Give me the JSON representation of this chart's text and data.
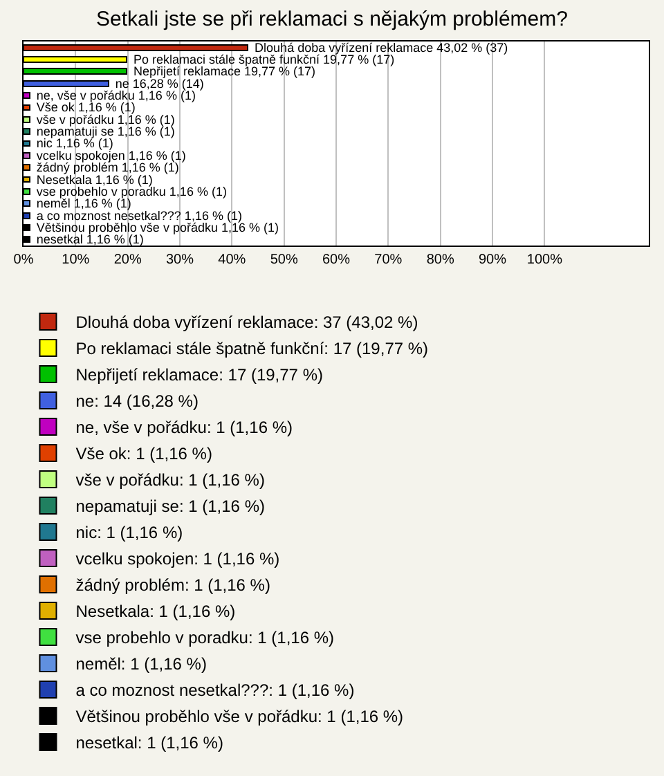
{
  "chart_data": {
    "type": "bar",
    "orientation": "horizontal",
    "stacked": true,
    "title": "Setkali jste se při reklamaci s nějakým problémem?",
    "categories": [
      null,
      null,
      null,
      null,
      null,
      null,
      null,
      null,
      null,
      null,
      null,
      null,
      null,
      null,
      null,
      null,
      null
    ],
    "series": [
      {
        "name": "Dlouhá doba vyřízení reklamace: 37 (43,02 %)",
        "color": "#c0280f",
        "values": [
          43.02,
          null,
          null,
          null,
          null,
          null,
          null,
          null,
          null,
          null,
          null,
          null,
          null,
          null,
          null,
          null,
          null
        ],
        "value_labels": [
          "Dlouhá doba vyřízení reklamace 43,02 % (37)",
          null,
          null,
          null,
          null,
          null,
          null,
          null,
          null,
          null,
          null,
          null,
          null,
          null,
          null,
          null,
          null
        ]
      },
      {
        "name": "Po reklamaci stále špatně funkční: 17 (19,77 %)",
        "color": "#ffff00",
        "values": [
          null,
          19.77,
          null,
          null,
          null,
          null,
          null,
          null,
          null,
          null,
          null,
          null,
          null,
          null,
          null,
          null,
          null
        ],
        "value_labels": [
          null,
          "Po reklamaci stále špatně funkční 19,77 % (17)",
          null,
          null,
          null,
          null,
          null,
          null,
          null,
          null,
          null,
          null,
          null,
          null,
          null,
          null,
          null
        ]
      },
      {
        "name": "Nepřijetí reklamace: 17 (19,77 %)",
        "color": "#00c000",
        "values": [
          null,
          null,
          19.77,
          null,
          null,
          null,
          null,
          null,
          null,
          null,
          null,
          null,
          null,
          null,
          null,
          null,
          null
        ],
        "value_labels": [
          null,
          null,
          "Nepřijetí reklamace 19,77 % (17)",
          null,
          null,
          null,
          null,
          null,
          null,
          null,
          null,
          null,
          null,
          null,
          null,
          null,
          null
        ]
      },
      {
        "name": "ne: 14 (16,28 %)",
        "color": "#4060e0",
        "values": [
          null,
          null,
          null,
          16.28,
          null,
          null,
          null,
          null,
          null,
          null,
          null,
          null,
          null,
          null,
          null,
          null,
          null
        ],
        "value_labels": [
          null,
          null,
          null,
          "ne 16,28 % (14)",
          null,
          null,
          null,
          null,
          null,
          null,
          null,
          null,
          null,
          null,
          null,
          null,
          null
        ]
      },
      {
        "name": "ne, vše v pořádku: 1 (1,16 %)",
        "color": "#c000c0",
        "values": [
          null,
          null,
          null,
          null,
          1.16,
          null,
          null,
          null,
          null,
          null,
          null,
          null,
          null,
          null,
          null,
          null,
          null
        ],
        "value_labels": [
          null,
          null,
          null,
          null,
          "ne, vše v pořádku 1,16 % (1)",
          null,
          null,
          null,
          null,
          null,
          null,
          null,
          null,
          null,
          null,
          null,
          null
        ]
      },
      {
        "name": "Vše ok: 1 (1,16 %)",
        "color": "#e04000",
        "values": [
          null,
          null,
          null,
          null,
          null,
          1.16,
          null,
          null,
          null,
          null,
          null,
          null,
          null,
          null,
          null,
          null,
          null
        ],
        "value_labels": [
          null,
          null,
          null,
          null,
          null,
          "Vše ok 1,16 % (1)",
          null,
          null,
          null,
          null,
          null,
          null,
          null,
          null,
          null,
          null,
          null
        ]
      },
      {
        "name": "vše v pořádku: 1 (1,16 %)",
        "color": "#c0ff80",
        "values": [
          null,
          null,
          null,
          null,
          null,
          null,
          1.16,
          null,
          null,
          null,
          null,
          null,
          null,
          null,
          null,
          null,
          null
        ],
        "value_labels": [
          null,
          null,
          null,
          null,
          null,
          null,
          "vše v pořádku 1,16 % (1)",
          null,
          null,
          null,
          null,
          null,
          null,
          null,
          null,
          null,
          null
        ]
      },
      {
        "name": "nepamatuji se: 1 (1,16 %)",
        "color": "#208060",
        "values": [
          null,
          null,
          null,
          null,
          null,
          null,
          null,
          1.16,
          null,
          null,
          null,
          null,
          null,
          null,
          null,
          null,
          null
        ],
        "value_labels": [
          null,
          null,
          null,
          null,
          null,
          null,
          null,
          "nepamatuji se 1,16 % (1)",
          null,
          null,
          null,
          null,
          null,
          null,
          null,
          null,
          null
        ]
      },
      {
        "name": "nic: 1 (1,16 %)",
        "color": "#207890",
        "values": [
          null,
          null,
          null,
          null,
          null,
          null,
          null,
          null,
          1.16,
          null,
          null,
          null,
          null,
          null,
          null,
          null,
          null
        ],
        "value_labels": [
          null,
          null,
          null,
          null,
          null,
          null,
          null,
          null,
          "nic 1,16 % (1)",
          null,
          null,
          null,
          null,
          null,
          null,
          null,
          null
        ]
      },
      {
        "name": "vcelku spokojen: 1 (1,16 %)",
        "color": "#c060c0",
        "values": [
          null,
          null,
          null,
          null,
          null,
          null,
          null,
          null,
          null,
          1.16,
          null,
          null,
          null,
          null,
          null,
          null,
          null
        ],
        "value_labels": [
          null,
          null,
          null,
          null,
          null,
          null,
          null,
          null,
          null,
          "vcelku spokojen 1,16 % (1)",
          null,
          null,
          null,
          null,
          null,
          null,
          null
        ]
      },
      {
        "name": "žádný problém: 1 (1,16 %)",
        "color": "#e07000",
        "values": [
          null,
          null,
          null,
          null,
          null,
          null,
          null,
          null,
          null,
          null,
          1.16,
          null,
          null,
          null,
          null,
          null,
          null
        ],
        "value_labels": [
          null,
          null,
          null,
          null,
          null,
          null,
          null,
          null,
          null,
          null,
          "žádný problém 1,16 % (1)",
          null,
          null,
          null,
          null,
          null,
          null
        ]
      },
      {
        "name": "Nesetkala: 1 (1,16 %)",
        "color": "#e0b000",
        "values": [
          null,
          null,
          null,
          null,
          null,
          null,
          null,
          null,
          null,
          null,
          null,
          1.16,
          null,
          null,
          null,
          null,
          null
        ],
        "value_labels": [
          null,
          null,
          null,
          null,
          null,
          null,
          null,
          null,
          null,
          null,
          null,
          "Nesetkala 1,16 % (1)",
          null,
          null,
          null,
          null,
          null
        ]
      },
      {
        "name": "vse probehlo v poradku: 1 (1,16 %)",
        "color": "#40e040",
        "values": [
          null,
          null,
          null,
          null,
          null,
          null,
          null,
          null,
          null,
          null,
          null,
          null,
          1.16,
          null,
          null,
          null,
          null
        ],
        "value_labels": [
          null,
          null,
          null,
          null,
          null,
          null,
          null,
          null,
          null,
          null,
          null,
          null,
          "vse probehlo v poradku 1,16 % (1)",
          null,
          null,
          null,
          null
        ]
      },
      {
        "name": "neměl: 1 (1,16 %)",
        "color": "#6090e0",
        "values": [
          null,
          null,
          null,
          null,
          null,
          null,
          null,
          null,
          null,
          null,
          null,
          null,
          null,
          1.16,
          null,
          null,
          null
        ],
        "value_labels": [
          null,
          null,
          null,
          null,
          null,
          null,
          null,
          null,
          null,
          null,
          null,
          null,
          null,
          "neměl 1,16 % (1)",
          null,
          null,
          null
        ]
      },
      {
        "name": "a co moznost nesetkal???: 1 (1,16 %)",
        "color": "#2040b0",
        "values": [
          null,
          null,
          null,
          null,
          null,
          null,
          null,
          null,
          null,
          null,
          null,
          null,
          null,
          null,
          1.16,
          null,
          null
        ],
        "value_labels": [
          null,
          null,
          null,
          null,
          null,
          null,
          null,
          null,
          null,
          null,
          null,
          null,
          null,
          null,
          "a co moznost nesetkal??? 1,16 % (1)",
          null,
          null
        ]
      },
      {
        "name": "Většinou proběhlo vše v pořádku: 1 (1,16 %)",
        "color": "#000000",
        "values": [
          null,
          null,
          null,
          null,
          null,
          null,
          null,
          null,
          null,
          null,
          null,
          null,
          null,
          null,
          null,
          1.16,
          null
        ],
        "value_labels": [
          null,
          null,
          null,
          null,
          null,
          null,
          null,
          null,
          null,
          null,
          null,
          null,
          null,
          null,
          null,
          "Většinou proběhlo vše v pořádku 1,16 % (1)",
          null
        ]
      },
      {
        "name": "nesetkal: 1 (1,16 %)",
        "color": "#000000",
        "values": [
          null,
          null,
          null,
          null,
          null,
          null,
          null,
          null,
          null,
          null,
          null,
          null,
          null,
          null,
          null,
          null,
          1.16
        ],
        "value_labels": [
          null,
          null,
          null,
          null,
          null,
          null,
          null,
          null,
          null,
          null,
          null,
          null,
          null,
          null,
          null,
          null,
          "nesetkal 1,16 % (1)"
        ]
      }
    ],
    "xlim": [
      0,
      120
    ],
    "xticks": [
      {
        "value": 0,
        "label": "0%"
      },
      {
        "value": 10,
        "label": "10%"
      },
      {
        "value": 20,
        "label": "20%"
      },
      {
        "value": 30,
        "label": "30%"
      },
      {
        "value": 40,
        "label": "40%"
      },
      {
        "value": 50,
        "label": "50%"
      },
      {
        "value": 60,
        "label": "60%"
      },
      {
        "value": 70,
        "label": "70%"
      },
      {
        "value": 80,
        "label": "80%"
      },
      {
        "value": 90,
        "label": "90%"
      },
      {
        "value": 100,
        "label": "100%"
      }
    ],
    "grid": "x",
    "legend": "bottom",
    "tick_labels": "x"
  }
}
